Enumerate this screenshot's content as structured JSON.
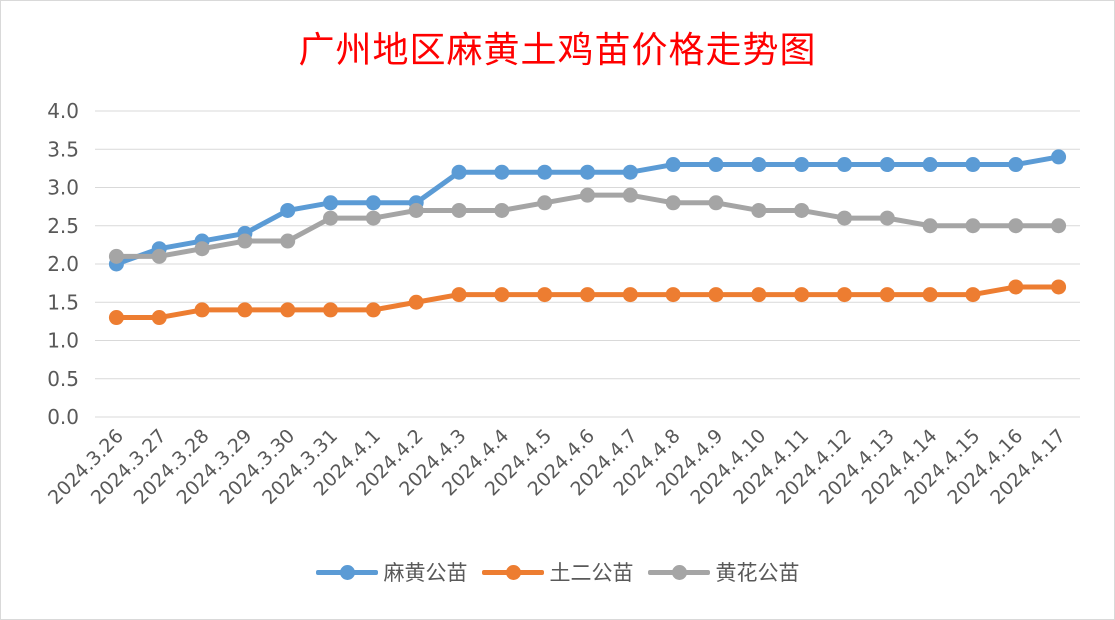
{
  "chart_data": {
    "type": "line",
    "title": "广州地区麻黄土鸡苗价格走势图",
    "xlabel": "",
    "ylabel": "",
    "categories": [
      "2024.3.26",
      "2024.3.27",
      "2024.3.28",
      "2024.3.29",
      "2024.3.30",
      "2024.3.31",
      "2024.4.1",
      "2024.4.2",
      "2024.4.3",
      "2024.4.4",
      "2024.4.5",
      "2024.4.6",
      "2024.4.7",
      "2024.4.8",
      "2024.4.9",
      "2024.4.10",
      "2024.4.11",
      "2024.4.12",
      "2024.4.13",
      "2024.4.14",
      "2024.4.15",
      "2024.4.16",
      "2024.4.17"
    ],
    "ylim": [
      0,
      4.0
    ],
    "yticks": [
      "0.0",
      "0.5",
      "1.0",
      "1.5",
      "2.0",
      "2.5",
      "3.0",
      "3.5",
      "4.0"
    ],
    "grid": true,
    "legend_position": "bottom",
    "series": [
      {
        "name": "麻黄公苗",
        "color": "#5b9bd5",
        "values": [
          2.0,
          2.2,
          2.3,
          2.4,
          2.7,
          2.8,
          2.8,
          2.8,
          3.2,
          3.2,
          3.2,
          3.2,
          3.2,
          3.3,
          3.3,
          3.3,
          3.3,
          3.3,
          3.3,
          3.3,
          3.3,
          3.3,
          3.4
        ]
      },
      {
        "name": "土二公苗",
        "color": "#ed7d31",
        "values": [
          1.3,
          1.3,
          1.4,
          1.4,
          1.4,
          1.4,
          1.4,
          1.5,
          1.6,
          1.6,
          1.6,
          1.6,
          1.6,
          1.6,
          1.6,
          1.6,
          1.6,
          1.6,
          1.6,
          1.6,
          1.6,
          1.7,
          1.7
        ]
      },
      {
        "name": "黄花公苗",
        "color": "#a5a5a5",
        "values": [
          2.1,
          2.1,
          2.2,
          2.3,
          2.3,
          2.6,
          2.6,
          2.7,
          2.7,
          2.7,
          2.8,
          2.9,
          2.9,
          2.8,
          2.8,
          2.7,
          2.7,
          2.6,
          2.6,
          2.5,
          2.5,
          2.5,
          2.5
        ]
      }
    ]
  }
}
